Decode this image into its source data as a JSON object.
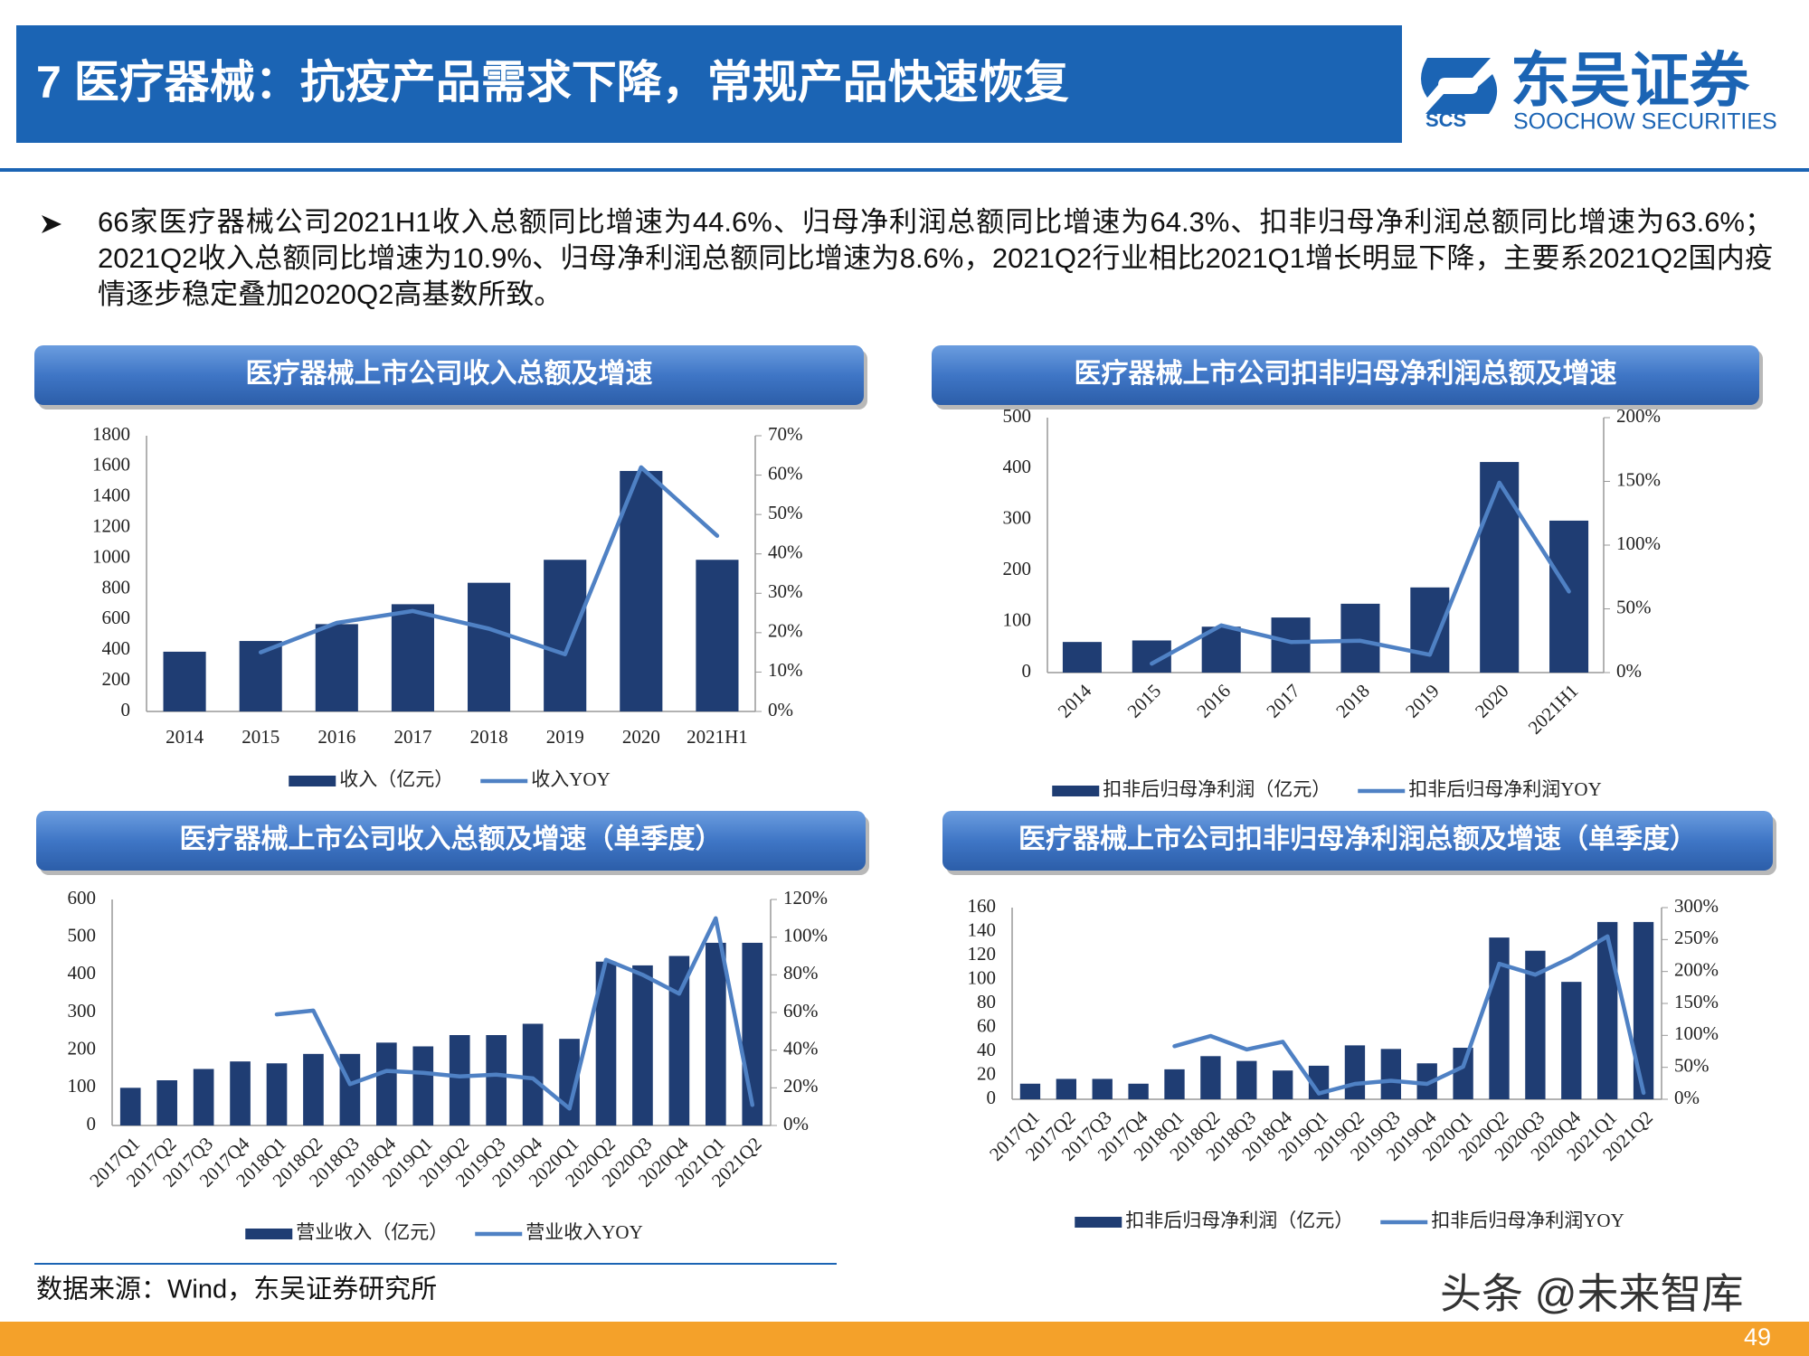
{
  "header": {
    "title": "7 医疗器械：抗疫产品需求下降，常规产品快速恢复",
    "logo_cn": "东吴证券",
    "logo_en": "SOOCHOW SECURITIES",
    "logo_abbr": "SCS"
  },
  "bullet": "66家医疗器械公司2021H1收入总额同比增速为44.6%、归母净利润总额同比增速为64.3%、扣非归母净利润总额同比增速为63.6%；2021Q2收入总额同比增速为10.9%、归母净利润总额同比增速为8.6%，2021Q2行业相比2021Q1增长明显下降，主要系2021Q2国内疫情逐步稳定叠加2020Q2高基数所致。",
  "chart_data": [
    {
      "type": "bar",
      "title": "医疗器械上市公司收入总额及增速",
      "categories": [
        "2014",
        "2015",
        "2016",
        "2017",
        "2018",
        "2019",
        "2020",
        "2021H1"
      ],
      "series": [
        {
          "name": "收入（亿元）",
          "type": "bar",
          "color": "#1f3d73",
          "values": [
            390,
            460,
            570,
            700,
            840,
            990,
            1570,
            990
          ]
        },
        {
          "name": "收入YOY",
          "type": "line",
          "axis": "y2",
          "color": "#4f81c4",
          "values": [
            null,
            15,
            22.5,
            25.5,
            21,
            14.5,
            62,
            44.6
          ]
        }
      ],
      "ylim": [
        0,
        1800
      ],
      "yticks": [
        0,
        200,
        400,
        600,
        800,
        1000,
        1200,
        1400,
        1600,
        1800
      ],
      "y2lim": [
        0,
        70
      ],
      "y2ticks": [
        {
          "value": 0,
          "label": "0%"
        },
        {
          "value": 10,
          "label": "10%"
        },
        {
          "value": 20,
          "label": "20%"
        },
        {
          "value": 30,
          "label": "30%"
        },
        {
          "value": 40,
          "label": "40%"
        },
        {
          "value": 50,
          "label": "50%"
        },
        {
          "value": 60,
          "label": "60%"
        },
        {
          "value": 70,
          "label": "70%"
        }
      ]
    },
    {
      "type": "bar",
      "title": "医疗器械上市公司扣非归母净利润总额及增速",
      "categories": [
        "2014",
        "2015",
        "2016",
        "2017",
        "2018",
        "2019",
        "2020",
        "2021H1"
      ],
      "series": [
        {
          "name": "扣非后归母净利润（亿元）",
          "type": "bar",
          "color": "#1f3d73",
          "values": [
            60,
            63,
            90,
            108,
            135,
            167,
            413,
            298
          ]
        },
        {
          "name": "扣非后归母净利润YOY",
          "type": "line",
          "axis": "y2",
          "color": "#4f81c4",
          "values": [
            null,
            7,
            37,
            24,
            25,
            14,
            149,
            63.6
          ]
        }
      ],
      "ylim": [
        0,
        500
      ],
      "yticks": [
        0,
        100,
        200,
        300,
        400,
        500
      ],
      "y2lim": [
        0,
        200
      ],
      "y2ticks": [
        {
          "value": 0,
          "label": "0%"
        },
        {
          "value": 50,
          "label": "50%"
        },
        {
          "value": 100,
          "label": "100%"
        },
        {
          "value": 150,
          "label": "150%"
        },
        {
          "value": 200,
          "label": "200%"
        }
      ]
    },
    {
      "type": "bar",
      "title": "医疗器械上市公司收入总额及增速（单季度）",
      "categories": [
        "2017Q1",
        "2017Q2",
        "2017Q3",
        "2017Q4",
        "2018Q1",
        "2018Q2",
        "2018Q3",
        "2018Q4",
        "2019Q1",
        "2019Q2",
        "2019Q3",
        "2019Q4",
        "2020Q1",
        "2020Q2",
        "2020Q3",
        "2020Q4",
        "2021Q1",
        "2021Q2"
      ],
      "series": [
        {
          "name": "营业收入（亿元）",
          "type": "bar",
          "color": "#1f3d73",
          "values": [
            100,
            120,
            150,
            170,
            165,
            190,
            190,
            220,
            210,
            240,
            240,
            270,
            230,
            435,
            425,
            450,
            485,
            485
          ]
        },
        {
          "name": "营业收入YOY",
          "type": "line",
          "axis": "y2",
          "color": "#4f81c4",
          "values": [
            null,
            null,
            null,
            null,
            59,
            61,
            22,
            29,
            28,
            26,
            27,
            25,
            9,
            88,
            80,
            70,
            110,
            10.9
          ]
        }
      ],
      "ylim": [
        0,
        600
      ],
      "yticks": [
        0,
        100,
        200,
        300,
        400,
        500,
        600
      ],
      "y2lim": [
        0,
        120
      ],
      "y2ticks": [
        {
          "value": 0,
          "label": "0%"
        },
        {
          "value": 20,
          "label": "20%"
        },
        {
          "value": 40,
          "label": "40%"
        },
        {
          "value": 60,
          "label": "60%"
        },
        {
          "value": 80,
          "label": "80%"
        },
        {
          "value": 100,
          "label": "100%"
        },
        {
          "value": 120,
          "label": "120%"
        }
      ]
    },
    {
      "type": "bar",
      "title": "医疗器械上市公司扣非归母净利润总额及增速（单季度）",
      "categories": [
        "2017Q1",
        "2017Q2",
        "2017Q3",
        "2017Q4",
        "2018Q1",
        "2018Q2",
        "2018Q3",
        "2018Q4",
        "2019Q1",
        "2019Q2",
        "2019Q3",
        "2019Q4",
        "2020Q1",
        "2020Q2",
        "2020Q3",
        "2020Q4",
        "2021Q1",
        "2021Q2"
      ],
      "series": [
        {
          "name": "扣非后归母净利润（亿元）",
          "type": "bar",
          "color": "#1f3d73",
          "values": [
            13,
            17,
            17,
            13,
            25,
            36,
            32,
            24,
            28,
            45,
            42,
            30,
            43,
            135,
            124,
            98,
            148,
            148
          ]
        },
        {
          "name": "扣非后归母净利润YOY",
          "type": "line",
          "axis": "y2",
          "color": "#4f81c4",
          "values": [
            null,
            null,
            null,
            null,
            83,
            99,
            78,
            90,
            9,
            24,
            29,
            24,
            51,
            212,
            195,
            222,
            255,
            10
          ]
        }
      ],
      "ylim": [
        0,
        160
      ],
      "yticks": [
        0,
        20,
        40,
        60,
        80,
        100,
        120,
        140,
        160
      ],
      "y2lim": [
        0,
        300
      ],
      "y2ticks": [
        {
          "value": 0,
          "label": "0%"
        },
        {
          "value": 50,
          "label": "50%"
        },
        {
          "value": 100,
          "label": "100%"
        },
        {
          "value": 150,
          "label": "150%"
        },
        {
          "value": 200,
          "label": "200%"
        },
        {
          "value": 250,
          "label": "250%"
        },
        {
          "value": 300,
          "label": "300%"
        }
      ]
    }
  ],
  "source": "数据来源：Wind，东吴证券研究所",
  "watermark": "头条 @未来智库",
  "page_number": "49"
}
